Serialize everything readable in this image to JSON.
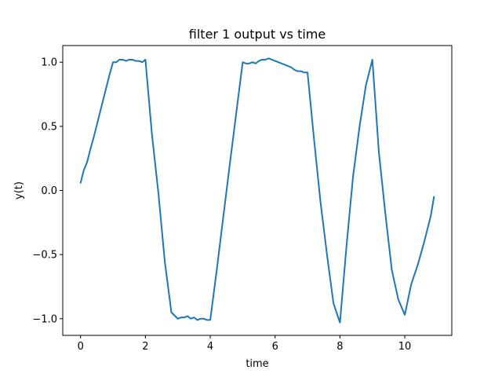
{
  "chart_data": {
    "type": "line",
    "title": "filter 1 output vs time",
    "xlabel": "time",
    "ylabel": "y(t)",
    "xlim": [
      -0.55,
      11.45
    ],
    "ylim": [
      -1.13,
      1.13
    ],
    "xticks": [
      0,
      2,
      4,
      6,
      8,
      10
    ],
    "xtick_labels": [
      "0",
      "2",
      "4",
      "6",
      "8",
      "10"
    ],
    "yticks": [
      -1.0,
      -0.5,
      0.0,
      0.5,
      1.0
    ],
    "ytick_labels": [
      "−1.0",
      "−0.5",
      "0.0",
      "0.5",
      "1.0"
    ],
    "grid": false,
    "legend": "none",
    "series": [
      {
        "color": "#1f77b4",
        "x": [
          0.0,
          0.1,
          0.2,
          0.3,
          0.4,
          0.5,
          0.6,
          0.7,
          0.8,
          0.9,
          1.0,
          1.1,
          1.2,
          1.3,
          1.4,
          1.5,
          1.6,
          1.7,
          1.8,
          1.9,
          2.0,
          2.2,
          2.4,
          2.6,
          2.8,
          3.0,
          3.1,
          3.2,
          3.3,
          3.4,
          3.5,
          3.6,
          3.7,
          3.8,
          3.9,
          4.0,
          4.2,
          4.4,
          4.6,
          4.8,
          5.0,
          5.1,
          5.2,
          5.3,
          5.4,
          5.5,
          5.6,
          5.7,
          5.8,
          5.9,
          6.0,
          6.1,
          6.2,
          6.3,
          6.4,
          6.5,
          6.6,
          6.7,
          6.8,
          6.9,
          7.0,
          7.2,
          7.4,
          7.6,
          7.8,
          8.0,
          8.2,
          8.4,
          8.6,
          8.8,
          9.0,
          9.2,
          9.4,
          9.6,
          9.8,
          10.0,
          10.2,
          10.4,
          10.6,
          10.8,
          10.9
        ],
        "y": [
          0.06,
          0.16,
          0.22,
          0.32,
          0.41,
          0.51,
          0.61,
          0.71,
          0.81,
          0.91,
          1.0,
          1.0,
          1.02,
          1.02,
          1.01,
          1.02,
          1.02,
          1.01,
          1.01,
          1.0,
          1.02,
          0.44,
          -0.02,
          -0.56,
          -0.95,
          -1.0,
          -0.99,
          -0.99,
          -0.98,
          -1.0,
          -0.99,
          -1.01,
          -1.0,
          -1.0,
          -1.01,
          -1.01,
          -0.62,
          -0.21,
          0.2,
          0.6,
          1.0,
          0.99,
          0.99,
          1.0,
          0.99,
          1.01,
          1.02,
          1.02,
          1.03,
          1.02,
          1.01,
          1.0,
          0.99,
          0.98,
          0.97,
          0.96,
          0.94,
          0.93,
          0.93,
          0.92,
          0.92,
          0.4,
          -0.09,
          -0.5,
          -0.88,
          -1.03,
          -0.44,
          0.1,
          0.49,
          0.82,
          1.02,
          0.3,
          -0.18,
          -0.62,
          -0.85,
          -0.97,
          -0.73,
          -0.58,
          -0.4,
          -0.2,
          -0.05
        ]
      }
    ]
  }
}
